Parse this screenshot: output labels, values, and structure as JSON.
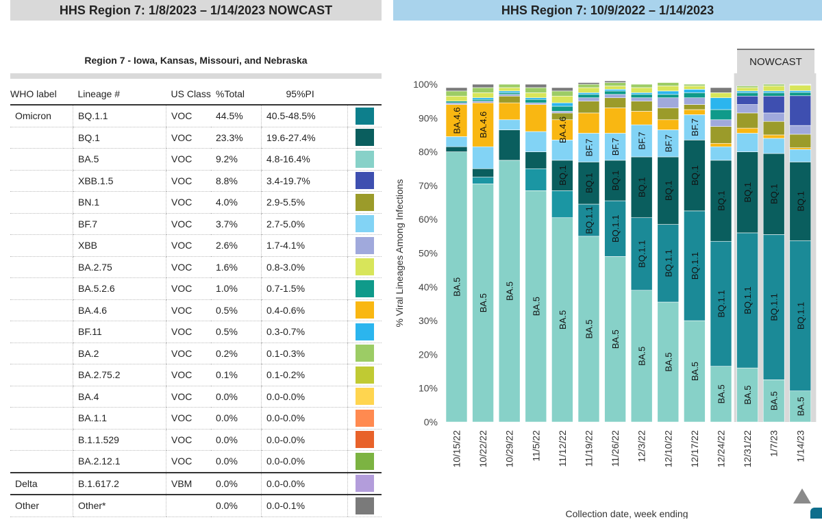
{
  "header": {
    "left_title": "HHS Region 7: 1/8/2023 – 1/14/2023 NOWCAST",
    "right_title": "HHS Region 7: 10/9/2022 – 1/14/2023"
  },
  "table": {
    "region_title": "Region 7 - Iowa, Kansas, Missouri, and Nebraska",
    "columns": [
      "WHO label",
      "Lineage #",
      "US Class",
      "%Total",
      "95%PI"
    ],
    "rows": [
      {
        "who": "Omicron",
        "lineage": "BQ.1.1",
        "cls": "VOC",
        "pct": "44.5%",
        "pi": "40.5-48.5%",
        "color": "#0d7f8c"
      },
      {
        "who": "",
        "lineage": "BQ.1",
        "cls": "VOC",
        "pct": "23.3%",
        "pi": "19.6-27.4%",
        "color": "#0a5e5e"
      },
      {
        "who": "",
        "lineage": "BA.5",
        "cls": "VOC",
        "pct": "9.2%",
        "pi": "4.8-16.4%",
        "color": "#87d1c8"
      },
      {
        "who": "",
        "lineage": "XBB.1.5",
        "cls": "VOC",
        "pct": "8.8%",
        "pi": "3.4-19.7%",
        "color": "#3e4fb0"
      },
      {
        "who": "",
        "lineage": "BN.1",
        "cls": "VOC",
        "pct": "4.0%",
        "pi": "2.9-5.5%",
        "color": "#9b9b2a"
      },
      {
        "who": "",
        "lineage": "BF.7",
        "cls": "VOC",
        "pct": "3.7%",
        "pi": "2.7-5.0%",
        "color": "#82d3f5"
      },
      {
        "who": "",
        "lineage": "XBB",
        "cls": "VOC",
        "pct": "2.6%",
        "pi": "1.7-4.1%",
        "color": "#a0a9dc"
      },
      {
        "who": "",
        "lineage": "BA.2.75",
        "cls": "VOC",
        "pct": "1.6%",
        "pi": "0.8-3.0%",
        "color": "#d8e55a"
      },
      {
        "who": "",
        "lineage": "BA.5.2.6",
        "cls": "VOC",
        "pct": "1.0%",
        "pi": "0.7-1.5%",
        "color": "#0f9a8a"
      },
      {
        "who": "",
        "lineage": "BA.4.6",
        "cls": "VOC",
        "pct": "0.5%",
        "pi": "0.4-0.6%",
        "color": "#f9b712"
      },
      {
        "who": "",
        "lineage": "BF.11",
        "cls": "VOC",
        "pct": "0.5%",
        "pi": "0.3-0.7%",
        "color": "#2bb5ee"
      },
      {
        "who": "",
        "lineage": "BA.2",
        "cls": "VOC",
        "pct": "0.2%",
        "pi": "0.1-0.3%",
        "color": "#9ccc65"
      },
      {
        "who": "",
        "lineage": "BA.2.75.2",
        "cls": "VOC",
        "pct": "0.1%",
        "pi": "0.1-0.2%",
        "color": "#c0ca33"
      },
      {
        "who": "",
        "lineage": "BA.4",
        "cls": "VOC",
        "pct": "0.0%",
        "pi": "0.0-0.0%",
        "color": "#ffd54f"
      },
      {
        "who": "",
        "lineage": "BA.1.1",
        "cls": "VOC",
        "pct": "0.0%",
        "pi": "0.0-0.0%",
        "color": "#ff8a50"
      },
      {
        "who": "",
        "lineage": "B.1.1.529",
        "cls": "VOC",
        "pct": "0.0%",
        "pi": "0.0-0.0%",
        "color": "#e8622a"
      },
      {
        "who": "",
        "lineage": "BA.2.12.1",
        "cls": "VOC",
        "pct": "0.0%",
        "pi": "0.0-0.0%",
        "color": "#7cb342",
        "group_end": true
      },
      {
        "who": "Delta",
        "lineage": "B.1.617.2",
        "cls": "VBM",
        "pct": "0.0%",
        "pi": "0.0-0.0%",
        "color": "#b39ddb",
        "group_end": true
      },
      {
        "who": "Other",
        "lineage": "Other*",
        "cls": "",
        "pct": "0.0%",
        "pi": "0.0-0.1%",
        "color": "#7a7a7a"
      }
    ]
  },
  "nowcast_label": "NOWCAST",
  "chart_data": {
    "type": "bar",
    "stacked": true,
    "ylabel": "% Viral Lineages Among Infections",
    "xlabel": "Collection date, week ending",
    "ylim": [
      0,
      100
    ],
    "yticks": [
      0,
      10,
      20,
      30,
      40,
      50,
      60,
      70,
      80,
      90,
      100
    ],
    "ytick_labels": [
      "0%",
      "10%",
      "20%",
      "30%",
      "40%",
      "50%",
      "60%",
      "70%",
      "80%",
      "90%",
      "100%"
    ],
    "categories": [
      "10/15/22",
      "10/22/22",
      "10/29/22",
      "11/5/22",
      "11/12/22",
      "11/19/22",
      "11/26/22",
      "12/3/22",
      "12/10/22",
      "12/17/22",
      "12/24/22",
      "12/31/22",
      "1/7/23",
      "1/14/23"
    ],
    "nowcast_from_index": 11,
    "series": [
      {
        "name": "BA.5",
        "color": "#87d1c8",
        "values": [
          80,
          70.5,
          77.5,
          68.5,
          60.5,
          55,
          49,
          39,
          35.5,
          30,
          16.5,
          16,
          12.5,
          9.2
        ]
      },
      {
        "name": "BA.5.2.6",
        "color": "#1b96a3",
        "values": [
          0,
          2,
          0,
          6.5,
          8,
          0,
          0,
          0,
          0,
          0,
          0,
          0,
          0,
          0
        ]
      },
      {
        "name": "BQ.1.1",
        "color": "#1b8a97",
        "values": [
          0,
          0,
          0,
          0,
          0,
          9.5,
          16.5,
          21.5,
          23,
          32.5,
          37,
          40,
          43,
          44.5
        ]
      },
      {
        "name": "BQ.1",
        "color": "#0a5e5e",
        "values": [
          1.5,
          2.5,
          9,
          5,
          9,
          12.5,
          12,
          18,
          20,
          21,
          24,
          24,
          24,
          23.3
        ]
      },
      {
        "name": "BF.7",
        "color": "#82d3f5",
        "values": [
          3,
          6.5,
          3,
          6,
          6,
          8.5,
          8,
          9.5,
          8,
          7.5,
          4,
          5.5,
          4.5,
          3.7
        ]
      },
      {
        "name": "BA.4.6",
        "color": "#f9b712",
        "values": [
          9.5,
          13,
          5,
          8,
          6,
          6,
          7.5,
          4,
          3,
          1.5,
          1,
          1.5,
          1,
          0.5
        ]
      },
      {
        "name": "BN.1",
        "color": "#9b9b2a",
        "values": [
          0,
          0,
          2,
          0,
          2,
          3.5,
          3,
          3,
          3.5,
          1.5,
          5,
          4.5,
          4,
          4
        ]
      },
      {
        "name": "XBB",
        "color": "#a0a9dc",
        "values": [
          0.5,
          0.5,
          0.5,
          0.5,
          0.5,
          1,
          1,
          1,
          3,
          2,
          2,
          2.5,
          2.5,
          2.6
        ]
      },
      {
        "name": "XBB.1.5",
        "color": "#3e4fb0",
        "values": [
          0,
          0,
          0,
          0,
          0,
          0,
          0,
          0,
          0,
          0,
          0,
          2.5,
          5,
          8.8
        ]
      },
      {
        "name": "BA.5.2.6 (teal)",
        "color": "#0f9a8a",
        "values": [
          0.5,
          0.5,
          0.5,
          1,
          1.5,
          1,
          1,
          1,
          1,
          1.5,
          3,
          1,
          1,
          1
        ]
      },
      {
        "name": "BF.11",
        "color": "#2bb5ee",
        "values": [
          0,
          0.5,
          0.5,
          0.5,
          1,
          0.5,
          0.5,
          0.5,
          1,
          1,
          3.5,
          0.5,
          0.5,
          0.5
        ]
      },
      {
        "name": "BA.2.75",
        "color": "#d8e55a",
        "values": [
          1.5,
          1.5,
          1,
          1.5,
          2,
          1.5,
          1,
          1.5,
          1.5,
          1,
          1.5,
          1,
          1.5,
          1.6
        ]
      },
      {
        "name": "BA.2",
        "color": "#9ccc65",
        "values": [
          1.5,
          1.5,
          1,
          1.5,
          1.5,
          1,
          1,
          1,
          1,
          0.5,
          0,
          0.5,
          0.5,
          0.2
        ]
      },
      {
        "name": "Other",
        "color": "#7a7a7a",
        "values": [
          1,
          1,
          0,
          1,
          1,
          0.5,
          0.5,
          0,
          0,
          0,
          1.5,
          0,
          0,
          0.1
        ]
      }
    ],
    "bar_labels": [
      [
        {
          "label": "BA.5",
          "series": "BA.5"
        },
        {
          "label": "BA.4.6",
          "series": "BA.4.6"
        }
      ],
      [
        {
          "label": "BA.5",
          "series": "BA.5"
        },
        {
          "label": "BA.4.6",
          "series": "BA.4.6"
        }
      ],
      [
        {
          "label": "BA.5",
          "series": "BA.5"
        }
      ],
      [
        {
          "label": "BA.5",
          "series": "BA.5"
        }
      ],
      [
        {
          "label": "BA.5",
          "series": "BA.5"
        },
        {
          "label": "BQ.1",
          "series": "BQ.1"
        },
        {
          "label": "BA.4.6",
          "series": "BA.4.6"
        }
      ],
      [
        {
          "label": "BA.5",
          "series": "BA.5"
        },
        {
          "label": "BQ.1.1",
          "series": "BQ.1.1"
        },
        {
          "label": "BQ.1",
          "series": "BQ.1"
        },
        {
          "label": "BF.7",
          "series": "BF.7"
        }
      ],
      [
        {
          "label": "BA.5",
          "series": "BA.5"
        },
        {
          "label": "BQ.1.1",
          "series": "BQ.1.1"
        },
        {
          "label": "BQ.1",
          "series": "BQ.1"
        },
        {
          "label": "BF.7",
          "series": "BF.7"
        }
      ],
      [
        {
          "label": "BA.5",
          "series": "BA.5"
        },
        {
          "label": "BQ.1.1",
          "series": "BQ.1.1"
        },
        {
          "label": "BQ.1",
          "series": "BQ.1"
        },
        {
          "label": "BF.7",
          "series": "BF.7"
        }
      ],
      [
        {
          "label": "BA.5",
          "series": "BA.5"
        },
        {
          "label": "BQ.1.1",
          "series": "BQ.1.1"
        },
        {
          "label": "BQ.1",
          "series": "BQ.1"
        },
        {
          "label": "BF.7",
          "series": "BF.7"
        }
      ],
      [
        {
          "label": "BA.5",
          "series": "BA.5"
        },
        {
          "label": "BQ.1.1",
          "series": "BQ.1.1"
        },
        {
          "label": "BQ.1",
          "series": "BQ.1"
        },
        {
          "label": "BF.7",
          "series": "BF.7"
        }
      ],
      [
        {
          "label": "BA.5",
          "series": "BA.5"
        },
        {
          "label": "BQ.1.1",
          "series": "BQ.1.1"
        },
        {
          "label": "BQ.1",
          "series": "BQ.1"
        }
      ],
      [
        {
          "label": "BA.5",
          "series": "BA.5"
        },
        {
          "label": "BQ.1.1",
          "series": "BQ.1.1"
        },
        {
          "label": "BQ.1",
          "series": "BQ.1"
        }
      ],
      [
        {
          "label": "BA.5",
          "series": "BA.5"
        },
        {
          "label": "BQ.1.1",
          "series": "BQ.1.1"
        },
        {
          "label": "BQ.1",
          "series": "BQ.1"
        }
      ],
      [
        {
          "label": "BA.5",
          "series": "BA.5"
        },
        {
          "label": "BQ.1.1",
          "series": "BQ.1.1"
        },
        {
          "label": "BQ.1",
          "series": "BQ.1"
        }
      ]
    ]
  }
}
